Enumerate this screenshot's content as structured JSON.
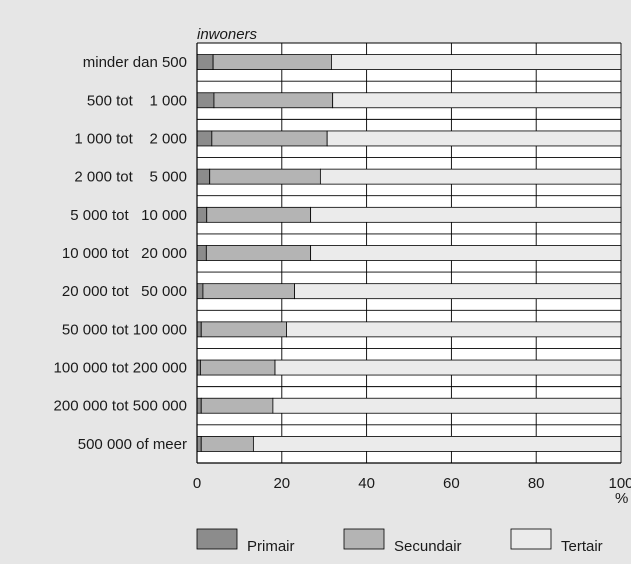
{
  "chart_data": {
    "type": "bar",
    "orientation": "horizontal",
    "stacked": true,
    "axis_title": "inwoners",
    "x_unit": "%",
    "xlim": [
      0,
      100
    ],
    "x_ticks": [
      "0",
      "20",
      "40",
      "60",
      "80",
      "100"
    ],
    "grid": true,
    "legend_position": "bottom",
    "categories": [
      "minder dan 500",
      "500 tot    1 000",
      "1 000 tot    2 000",
      "2 000 tot    5 000",
      "5 000 tot   10 000",
      "10 000 tot   20 000",
      "20 000 tot   50 000",
      "50 000 tot 100 000",
      "100 000 tot 200 000",
      "200 000 tot 500 000",
      "500 000 of meer"
    ],
    "series": [
      {
        "name": "Primair",
        "color": "#8c8c8c",
        "values": [
          3.8,
          4.0,
          3.5,
          3.0,
          2.3,
          2.2,
          1.4,
          1.0,
          0.8,
          1.0,
          1.0
        ]
      },
      {
        "name": "Secundair",
        "color": "#b4b4b4",
        "values": [
          27.9,
          28.0,
          27.2,
          26.1,
          24.5,
          24.6,
          21.6,
          20.1,
          17.6,
          16.9,
          12.3
        ]
      },
      {
        "name": "Tertair",
        "color": "#ebebeb",
        "values": [
          68.3,
          68.0,
          69.3,
          70.9,
          73.2,
          73.2,
          77.0,
          78.9,
          81.6,
          82.1,
          86.7
        ]
      }
    ]
  }
}
